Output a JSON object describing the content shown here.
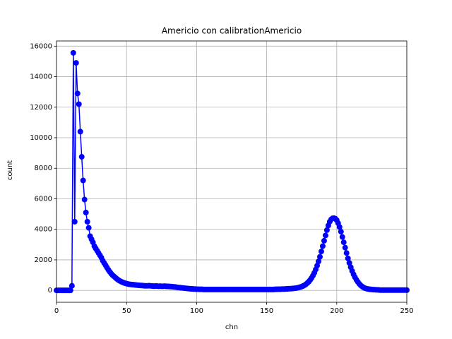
{
  "chart_data": {
    "type": "line",
    "title": "Americio con calibrationAmericio",
    "x_label": "chn",
    "y_label": "count",
    "x": [
      0,
      1,
      2,
      3,
      4,
      5,
      6,
      7,
      8,
      9,
      10,
      11,
      12,
      13,
      14,
      15,
      16,
      17,
      18,
      19,
      20,
      21,
      22,
      23,
      24,
      25,
      26,
      27,
      28,
      29,
      30,
      31,
      32,
      33,
      34,
      35,
      36,
      37,
      38,
      39,
      40,
      41,
      42,
      43,
      44,
      45,
      46,
      47,
      48,
      49,
      50,
      51,
      52,
      53,
      54,
      55,
      56,
      57,
      58,
      59,
      60,
      61,
      62,
      63,
      64,
      65,
      66,
      67,
      68,
      69,
      70,
      71,
      72,
      73,
      74,
      75,
      76,
      77,
      78,
      79,
      80,
      81,
      82,
      83,
      84,
      85,
      86,
      87,
      88,
      89,
      90,
      91,
      92,
      93,
      94,
      95,
      96,
      97,
      98,
      99,
      100,
      101,
      102,
      103,
      104,
      105,
      106,
      107,
      108,
      109,
      110,
      111,
      112,
      113,
      114,
      115,
      116,
      117,
      118,
      119,
      120,
      121,
      122,
      123,
      124,
      125,
      126,
      127,
      128,
      129,
      130,
      131,
      132,
      133,
      134,
      135,
      136,
      137,
      138,
      139,
      140,
      141,
      142,
      143,
      144,
      145,
      146,
      147,
      148,
      149,
      150,
      151,
      152,
      153,
      154,
      155,
      156,
      157,
      158,
      159,
      160,
      161,
      162,
      163,
      164,
      165,
      166,
      167,
      168,
      169,
      170,
      171,
      172,
      173,
      174,
      175,
      176,
      177,
      178,
      179,
      180,
      181,
      182,
      183,
      184,
      185,
      186,
      187,
      188,
      189,
      190,
      191,
      192,
      193,
      194,
      195,
      196,
      197,
      198,
      199,
      200,
      201,
      202,
      203,
      204,
      205,
      206,
      207,
      208,
      209,
      210,
      211,
      212,
      213,
      214,
      215,
      216,
      217,
      218,
      219,
      220,
      221,
      222,
      223,
      224,
      225,
      226,
      227,
      228,
      229,
      230,
      231,
      232,
      233,
      234,
      235,
      236,
      237,
      238,
      239,
      240,
      241,
      242,
      243,
      244,
      245,
      246,
      247,
      248,
      249,
      250
    ],
    "values": [
      0,
      0,
      0,
      0,
      0,
      0,
      0,
      0,
      0,
      0,
      0,
      300,
      15560,
      4500,
      14900,
      12900,
      12200,
      10400,
      8750,
      7200,
      5950,
      5100,
      4500,
      4100,
      3550,
      3350,
      3150,
      2900,
      2750,
      2600,
      2450,
      2300,
      2150,
      1950,
      1800,
      1650,
      1500,
      1350,
      1220,
      1100,
      1000,
      920,
      840,
      760,
      690,
      630,
      580,
      540,
      500,
      470,
      440,
      420,
      400,
      390,
      380,
      370,
      360,
      350,
      340,
      330,
      320,
      320,
      310,
      300,
      300,
      300,
      310,
      300,
      290,
      280,
      280,
      290,
      280,
      270,
      280,
      270,
      270,
      280,
      270,
      260,
      260,
      250,
      250,
      240,
      230,
      220,
      200,
      190,
      180,
      170,
      160,
      150,
      140,
      130,
      120,
      110,
      100,
      100,
      90,
      90,
      80,
      80,
      70,
      70,
      70,
      60,
      60,
      60,
      60,
      60,
      60,
      60,
      60,
      60,
      60,
      60,
      60,
      60,
      60,
      60,
      60,
      60,
      60,
      60,
      60,
      60,
      60,
      60,
      60,
      60,
      60,
      60,
      60,
      60,
      60,
      60,
      60,
      60,
      60,
      60,
      60,
      60,
      60,
      60,
      60,
      60,
      60,
      60,
      60,
      60,
      60,
      60,
      60,
      60,
      60,
      60,
      70,
      70,
      80,
      80,
      80,
      90,
      90,
      90,
      100,
      100,
      110,
      110,
      120,
      130,
      140,
      150,
      170,
      190,
      220,
      250,
      290,
      340,
      400,
      480,
      570,
      680,
      810,
      970,
      1150,
      1370,
      1620,
      1900,
      2200,
      2550,
      2900,
      3250,
      3600,
      3950,
      4250,
      4500,
      4650,
      4720,
      4730,
      4700,
      4600,
      4400,
      4150,
      3850,
      3500,
      3150,
      2800,
      2450,
      2100,
      1800,
      1520,
      1270,
      1050,
      860,
      700,
      560,
      440,
      340,
      260,
      200,
      150,
      120,
      100,
      80,
      70,
      60,
      50,
      50,
      40,
      40,
      30,
      20,
      20,
      20,
      20,
      20,
      20,
      20,
      20,
      20,
      20,
      20,
      20,
      20,
      20,
      20,
      20,
      20,
      20,
      20,
      20
    ],
    "color": "#0000ff",
    "xlim": [
      0,
      250
    ],
    "xticks": [
      0,
      50,
      100,
      150,
      200,
      250
    ],
    "ylim": [
      -778,
      16338
    ],
    "yticks": [
      0,
      2000,
      4000,
      6000,
      8000,
      10000,
      12000,
      14000,
      16000
    ],
    "grid": true
  }
}
